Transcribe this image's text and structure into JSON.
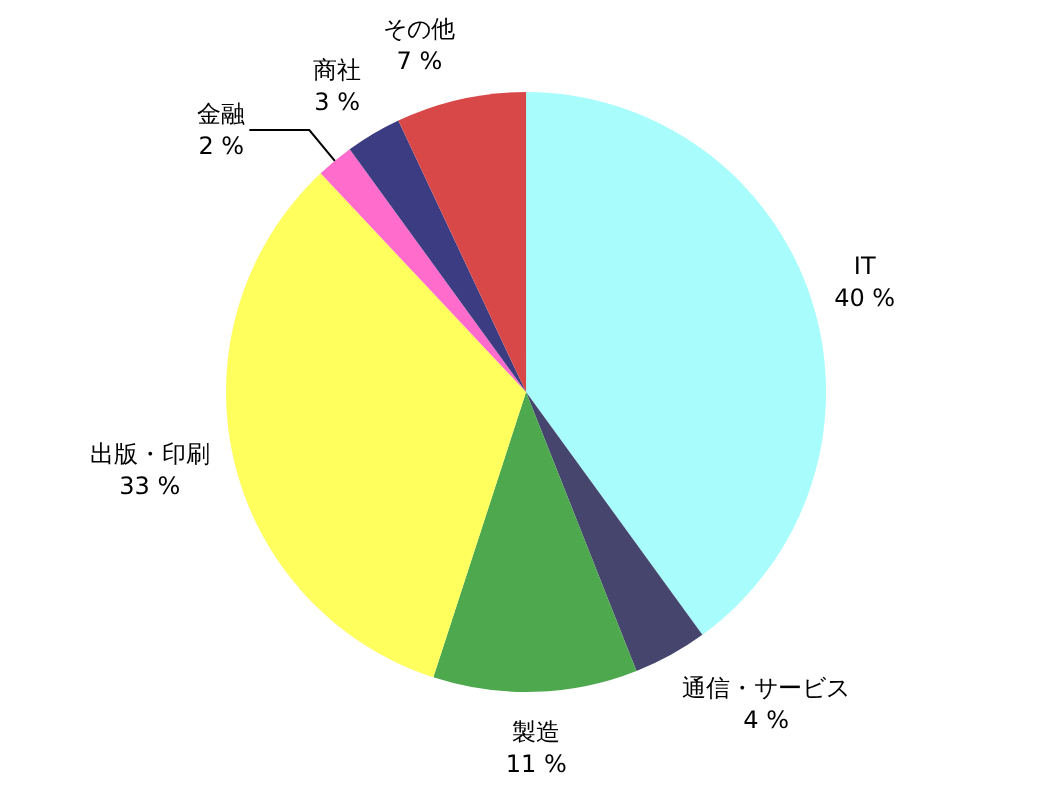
{
  "chart_data": {
    "type": "pie",
    "categories": [
      "IT",
      "通信・サービス",
      "製造",
      "出版・印刷",
      "金融",
      "商社",
      "その他"
    ],
    "values": [
      40,
      4,
      11,
      33,
      2,
      3,
      7
    ],
    "colors": [
      "#a8fcfc",
      "#45456e",
      "#4ea84e",
      "#ffff5e",
      "#ff6ccc",
      "#3c3c82",
      "#d84848"
    ],
    "value_labels": [
      "40 %",
      "4 %",
      "11 %",
      "33 %",
      "2 %",
      "3 %",
      "7 %"
    ]
  }
}
